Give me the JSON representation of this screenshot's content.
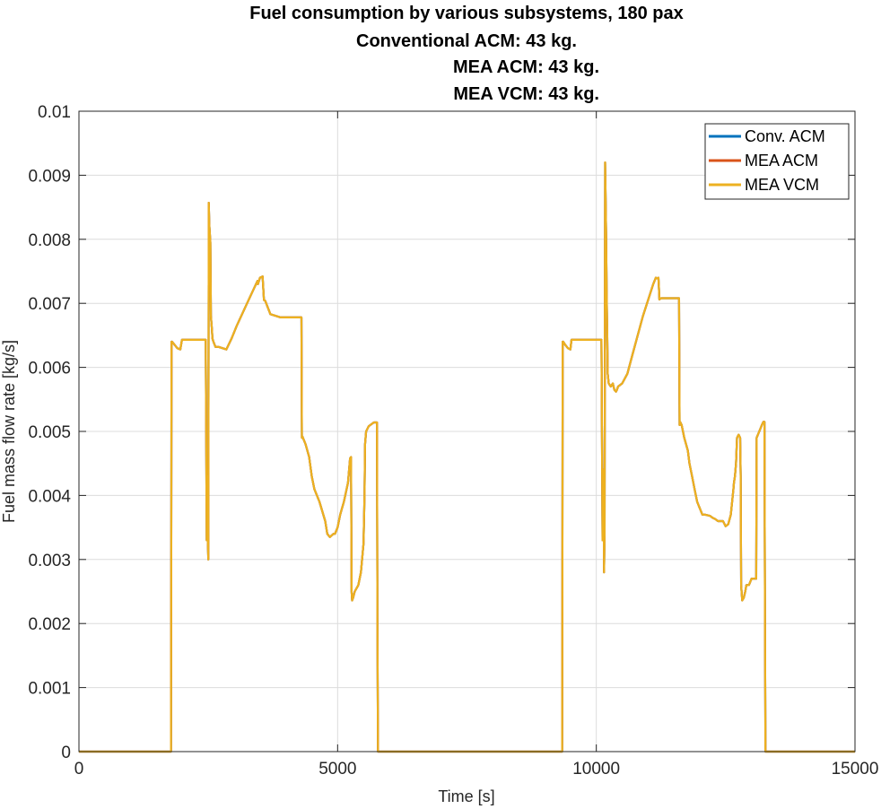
{
  "chart_data": {
    "type": "line",
    "title_lines": [
      "Fuel consumption by various subsystems, 180 pax",
      "Conventional ACM: 43 kg.",
      "MEA ACM: 43 kg.",
      "MEA VCM: 43 kg."
    ],
    "xlabel": "Time [s]",
    "ylabel": "Fuel mass flow rate [kg/s]",
    "xlim": [
      0,
      15000
    ],
    "ylim": [
      0,
      0.01
    ],
    "xticks": [
      0,
      5000,
      10000,
      15000
    ],
    "xtick_labels": [
      "0",
      "5000",
      "10000",
      "15000"
    ],
    "yticks": [
      0,
      0.001,
      0.002,
      0.003,
      0.004,
      0.005,
      0.006,
      0.007,
      0.008,
      0.009,
      0.01
    ],
    "ytick_labels": [
      "0",
      "0.001",
      "0.002",
      "0.003",
      "0.004",
      "0.005",
      "0.006",
      "0.007",
      "0.008",
      "0.009",
      "0.01"
    ],
    "grid": true,
    "legend_position": "top-right",
    "series": [
      {
        "name": "Conv. ACM",
        "color": "#0072BD",
        "profile": "shared"
      },
      {
        "name": "MEA ACM",
        "color": "#D95319",
        "profile": "shared"
      },
      {
        "name": "MEA VCM",
        "color": "#EDB120",
        "profile": "shared"
      }
    ],
    "shared_profile": {
      "x": [
        0,
        1780,
        1790,
        1800,
        1850,
        1900,
        1960,
        1990,
        2000,
        2450,
        2470,
        2480,
        2490,
        2500,
        2510,
        2520,
        2540,
        2550,
        2570,
        2580,
        2600,
        2640,
        2700,
        2850,
        2950,
        3050,
        3250,
        3450,
        3460,
        3500,
        3550,
        3575,
        3580,
        3600,
        3700,
        3900,
        4000,
        4300,
        4310,
        4320,
        4380,
        4450,
        4500,
        4550,
        4650,
        4760,
        4800,
        4850,
        4920,
        4950,
        5000,
        5050,
        5120,
        5200,
        5240,
        5260,
        5270,
        5280,
        5300,
        5330,
        5400,
        5450,
        5500,
        5520,
        5530,
        5550,
        5600,
        5700,
        5760,
        5770,
        5780,
        9340,
        9350,
        9360,
        9400,
        9450,
        9500,
        9520,
        9540,
        10100,
        10120,
        10140,
        10150,
        10160,
        10170,
        10190,
        10200,
        10210,
        10220,
        10240,
        10280,
        10320,
        10350,
        10380,
        10400,
        10420,
        10500,
        10600,
        10700,
        10900,
        11100,
        11150,
        11180,
        11200,
        11210,
        11220,
        11250,
        11300,
        11400,
        11600,
        11610,
        11620,
        11650,
        11700,
        11770,
        11800,
        11850,
        11900,
        11950,
        12000,
        12050,
        12100,
        12200,
        12250,
        12300,
        12350,
        12400,
        12450,
        12500,
        12550,
        12600,
        12650,
        12660,
        12680,
        12700,
        12720,
        12750,
        12780,
        12790,
        12800,
        12820,
        12850,
        12880,
        12900,
        12950,
        13000,
        13050,
        13080,
        13090,
        13100,
        13150,
        13200,
        13230,
        13250,
        13260,
        13270,
        13280,
        15000
      ],
      "y": [
        0,
        0,
        0.0064,
        0.0064,
        0.00635,
        0.0063,
        0.00628,
        0.00643,
        0.00643,
        0.00643,
        0.0033,
        0.0043,
        0.0033,
        0.003,
        0.00857,
        0.00823,
        0.00795,
        0.0068,
        0.0066,
        0.00645,
        0.0064,
        0.00632,
        0.00632,
        0.00628,
        0.00645,
        0.00665,
        0.007,
        0.00735,
        0.0073,
        0.0074,
        0.00742,
        0.00705,
        0.00705,
        0.00704,
        0.00683,
        0.00678,
        0.00678,
        0.00678,
        0.0049,
        0.00492,
        0.0048,
        0.0046,
        0.0043,
        0.0041,
        0.0039,
        0.0036,
        0.0034,
        0.00335,
        0.0034,
        0.0034,
        0.0035,
        0.0037,
        0.0039,
        0.0042,
        0.00458,
        0.0046,
        0.0025,
        0.00236,
        0.0024,
        0.0025,
        0.0026,
        0.0028,
        0.00325,
        0.004,
        0.0048,
        0.005,
        0.00508,
        0.00514,
        0.00514,
        0.002,
        0,
        0,
        0.0064,
        0.0064,
        0.00635,
        0.0063,
        0.00628,
        0.00643,
        0.00643,
        0.00643,
        0.0033,
        0.0044,
        0.0028,
        0.0034,
        0.0092,
        0.0081,
        0.0072,
        0.0066,
        0.0059,
        0.00575,
        0.0057,
        0.00575,
        0.00565,
        0.00562,
        0.00565,
        0.0057,
        0.00575,
        0.0059,
        0.0062,
        0.0068,
        0.0073,
        0.0074,
        0.00739,
        0.0074,
        0.00726,
        0.00706,
        0.00708,
        0.00708,
        0.00708,
        0.00708,
        0.0051,
        0.00515,
        0.0051,
        0.0049,
        0.0047,
        0.0045,
        0.0043,
        0.0041,
        0.0039,
        0.0038,
        0.0037,
        0.0037,
        0.00368,
        0.00365,
        0.00363,
        0.0036,
        0.0036,
        0.0036,
        0.00352,
        0.00355,
        0.0037,
        0.0041,
        0.0042,
        0.0043,
        0.0045,
        0.0049,
        0.00495,
        0.0049,
        0.0043,
        0.0026,
        0.00236,
        0.0024,
        0.0025,
        0.0026,
        0.0026,
        0.0027,
        0.0027,
        0.0027,
        0.0027,
        0.0049,
        0.005,
        0.0051,
        0.00515,
        0.00515,
        0.002,
        0,
        0,
        0
      ]
    }
  }
}
